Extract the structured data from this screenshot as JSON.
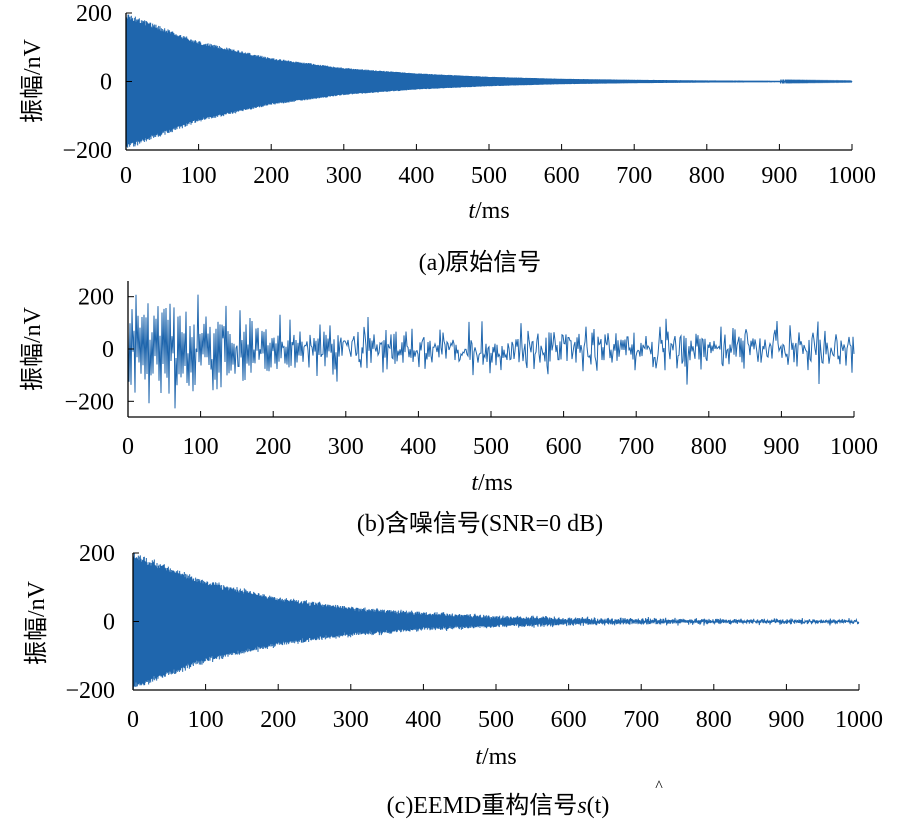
{
  "chart_data": [
    {
      "id": "a",
      "type": "line",
      "caption": "(a)原始信号",
      "ylabel": "振幅/nV",
      "xlabel_italic": "t",
      "xlabel_unit": "/ms",
      "xlim": [
        0,
        1000
      ],
      "ylim": [
        -200,
        200
      ],
      "xticks": [
        "0",
        "100",
        "200",
        "300",
        "400",
        "500",
        "600",
        "700",
        "800",
        "900",
        "1000"
      ],
      "yticks": [
        {
          "value": 200,
          "label": "200"
        },
        {
          "value": 0,
          "label": "0"
        },
        {
          "value": -200,
          "label": "−200"
        }
      ],
      "color": "#1f66ad",
      "envelope": {
        "x": [
          0,
          100,
          200,
          300,
          400,
          500,
          600,
          700,
          800,
          900,
          1000
        ],
        "amplitude": [
          200,
          118,
          69,
          40,
          24,
          14,
          8,
          5,
          3,
          2,
          1
        ]
      },
      "noise_std": 0
    },
    {
      "id": "b",
      "type": "line",
      "caption": "(b)含噪信号(SNR=0 dB)",
      "ylabel": "振幅/nV",
      "xlabel_italic": "t",
      "xlabel_unit": "/ms",
      "xlim": [
        0,
        1000
      ],
      "ylim": [
        -260,
        260
      ],
      "xticks": [
        "0",
        "100",
        "200",
        "300",
        "400",
        "500",
        "600",
        "700",
        "800",
        "900",
        "1000"
      ],
      "yticks": [
        {
          "value": 200,
          "label": "200"
        },
        {
          "value": 0,
          "label": "0"
        },
        {
          "value": -200,
          "label": "−200"
        }
      ],
      "color": "#1f66ad",
      "envelope": {
        "x": [
          0,
          100,
          200,
          300,
          400,
          500,
          600,
          700,
          800,
          900,
          1000
        ],
        "amplitude": [
          200,
          118,
          69,
          40,
          24,
          14,
          8,
          5,
          3,
          2,
          1
        ]
      },
      "noise_std": 42
    },
    {
      "id": "c",
      "type": "line",
      "caption": "(c)EEMD重构信号",
      "caption_symbol": "s",
      "caption_arg": "(t)",
      "ylabel": "振幅/nV",
      "xlabel_italic": "t",
      "xlabel_unit": "/ms",
      "xlim": [
        0,
        1000
      ],
      "ylim": [
        -200,
        200
      ],
      "xticks": [
        "0",
        "100",
        "200",
        "300",
        "400",
        "500",
        "600",
        "700",
        "800",
        "900",
        "1000"
      ],
      "yticks": [
        {
          "value": 200,
          "label": "200"
        },
        {
          "value": 0,
          "label": "0"
        },
        {
          "value": -200,
          "label": "−200"
        }
      ],
      "color": "#1f66ad",
      "envelope": {
        "x": [
          0,
          100,
          200,
          300,
          400,
          500,
          600,
          700,
          800,
          900,
          1000
        ],
        "amplitude": [
          200,
          118,
          69,
          40,
          24,
          14,
          8,
          5,
          3,
          2,
          1
        ]
      },
      "noise_std": 3
    }
  ]
}
